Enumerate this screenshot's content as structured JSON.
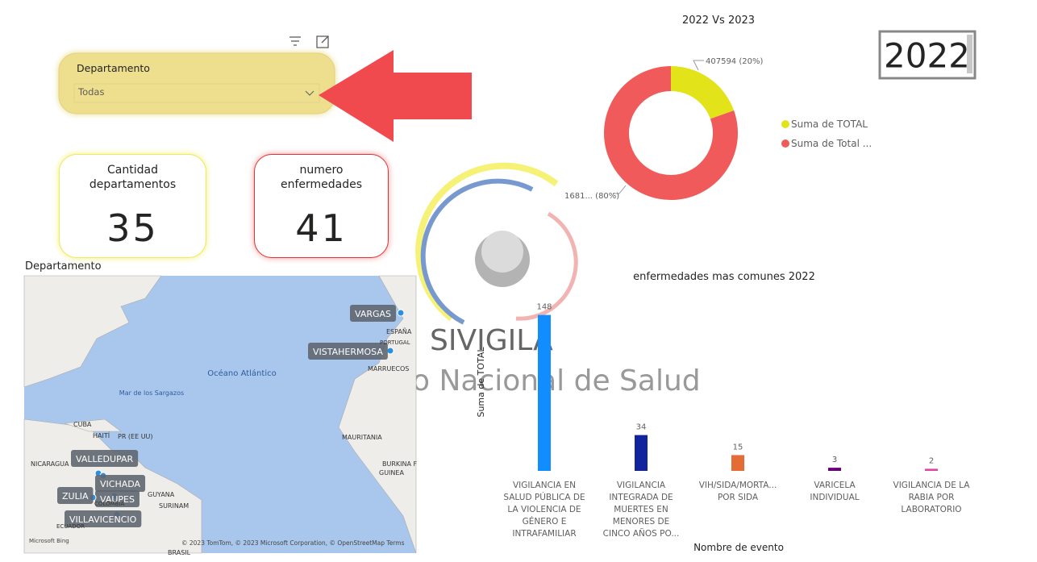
{
  "slicer": {
    "title": "Departamento",
    "value": "Todas"
  },
  "year_slicer": {
    "value": "2022"
  },
  "cards": [
    {
      "label": "Cantidad departamentos",
      "value": 35
    },
    {
      "label": "numero enfermedades",
      "value": 41
    }
  ],
  "map": {
    "title": "Departamento",
    "locations": [
      "VARGAS",
      "VISTAHERMOSA",
      "VALLEDUPAR",
      "VICHADA",
      "VAUPES",
      "ZULIA",
      "VILLAVICENCIO"
    ],
    "places": [
      "Océano Atlántico",
      "Mar de los Sargazos",
      "ESPAÑA",
      "PORTUGAL",
      "MARRUECOS",
      "CUBA",
      "HAITÍ",
      "PR (EE UU)",
      "NICARAGUA",
      "MAURITANIA",
      "BURKINA F",
      "GUINEA",
      "GUYANA",
      "SURINAM",
      "COLOMBIA",
      "ECUADOR",
      "BRASIL"
    ],
    "attribution": "© 2023 TomTom, © 2023 Microsoft Corporation, © OpenStreetMap  Terms",
    "brand": "Microsoft Bing"
  },
  "watermark": {
    "name": "SIVIGILA",
    "text": "o Nacional de Salud"
  },
  "chart_data": [
    {
      "type": "donut",
      "title": "2022 Vs 2023",
      "categories": [
        "Suma de TOTAL",
        "Suma de Total ..."
      ],
      "values": [
        407594,
        1681000
      ],
      "value_labels": [
        "407594 (20%)",
        "1681... (80%)"
      ],
      "colors": [
        "#e3e31a",
        "#f05a5a"
      ],
      "legend": "right"
    },
    {
      "type": "bar",
      "title": "enfermedades mas comunes 2022",
      "x_label": "Nombre de evento",
      "y_label": "Suma de TOTAL",
      "categories": [
        "VIGILANCIA EN SALUD PÚBLICA DE LA VIOLENCIA DE GÉNERO E INTRAFAMILIAR",
        "VIGILANCIA INTEGRADA DE MUERTES EN MENORES DE CINCO AÑOS PO...",
        "VIH/SIDA/MORTA... POR SIDA",
        "VARICELA INDIVIDUAL",
        "VIGILANCIA DE LA RABIA POR LABORATORIO"
      ],
      "values": [
        148,
        34,
        15,
        3,
        2
      ],
      "colors": [
        "#118dff",
        "#12239e",
        "#e66c37",
        "#6b007b",
        "#e044a7"
      ],
      "ylim": [
        0,
        150
      ]
    }
  ]
}
